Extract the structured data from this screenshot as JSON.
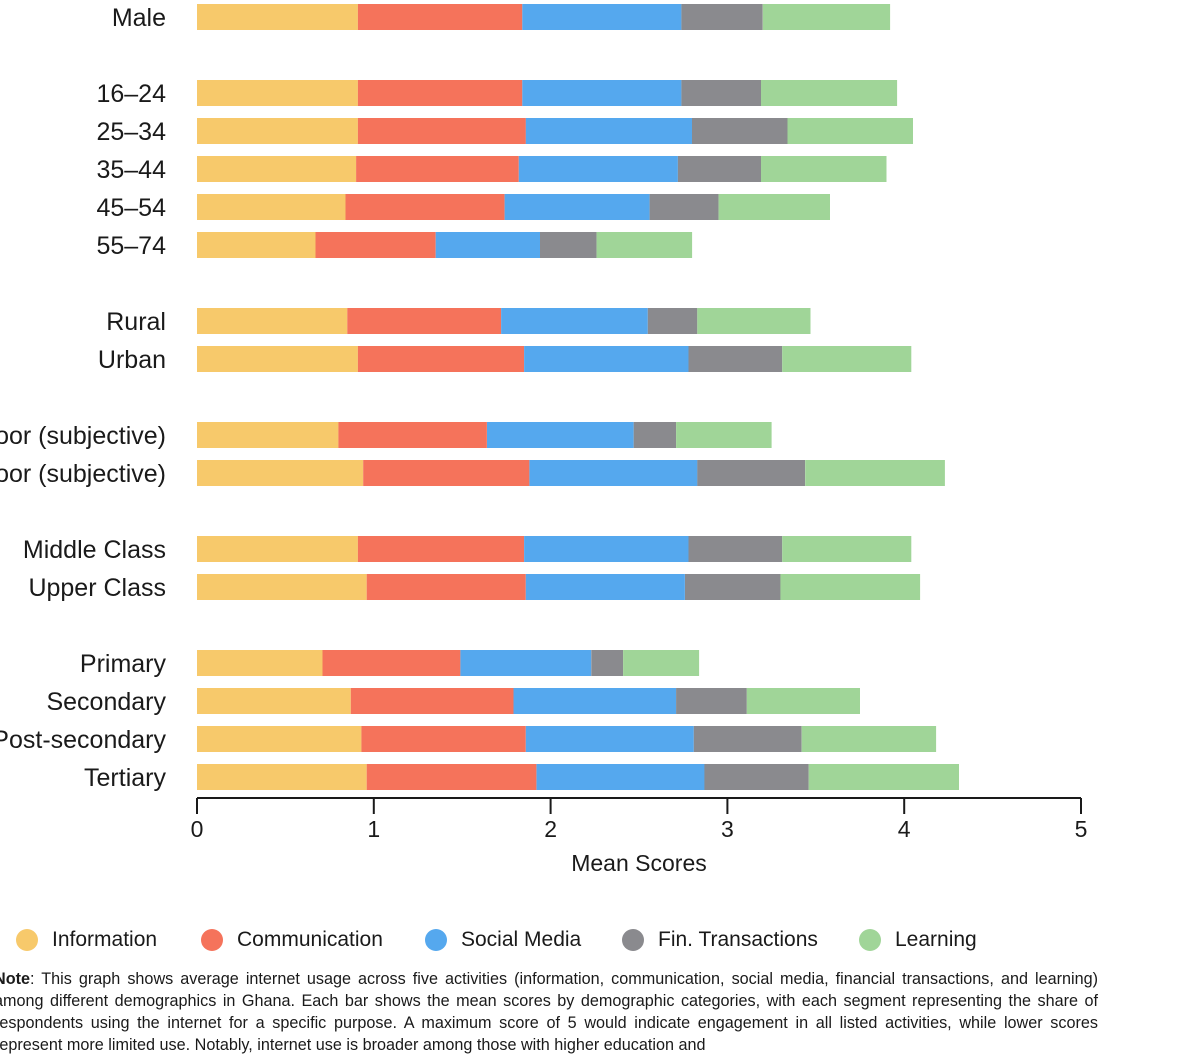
{
  "chart_data": {
    "type": "bar",
    "orientation": "horizontal",
    "stacked": true,
    "xlabel": "Mean Scores",
    "xlim": [
      0,
      5
    ],
    "xticks": [
      0,
      1,
      2,
      3,
      4,
      5
    ],
    "grid": false,
    "legend_position": "bottom",
    "categories": [
      "Male",
      "16–24",
      "25–34",
      "35–44",
      "45–54",
      "55–74",
      "Rural",
      "Urban",
      "Poor (subjective)",
      "Not poor (subjective)",
      "Middle Class",
      "Upper Class",
      "Primary",
      "Secondary",
      "Post-secondary",
      "Tertiary"
    ],
    "series": [
      {
        "name": "Information",
        "color": "#F7C96B",
        "values": [
          0.91,
          0.91,
          0.91,
          0.9,
          0.84,
          0.67,
          0.85,
          0.91,
          0.8,
          0.94,
          0.91,
          0.96,
          0.71,
          0.87,
          0.93,
          0.96
        ]
      },
      {
        "name": "Communication",
        "color": "#F5735B",
        "values": [
          0.93,
          0.93,
          0.95,
          0.92,
          0.9,
          0.68,
          0.87,
          0.94,
          0.84,
          0.94,
          0.94,
          0.9,
          0.78,
          0.92,
          0.93,
          0.96
        ]
      },
      {
        "name": "Social Media",
        "color": "#55A8EE",
        "values": [
          0.9,
          0.9,
          0.94,
          0.9,
          0.82,
          0.59,
          0.83,
          0.93,
          0.83,
          0.95,
          0.93,
          0.9,
          0.74,
          0.92,
          0.95,
          0.95
        ]
      },
      {
        "name": "Fin. Transactions",
        "color": "#8A8A8E",
        "values": [
          0.46,
          0.45,
          0.54,
          0.47,
          0.39,
          0.32,
          0.28,
          0.53,
          0.24,
          0.61,
          0.53,
          0.54,
          0.18,
          0.4,
          0.61,
          0.59
        ]
      },
      {
        "name": "Learning",
        "color": "#A0D598",
        "values": [
          0.72,
          0.77,
          0.71,
          0.71,
          0.63,
          0.54,
          0.64,
          0.73,
          0.54,
          0.79,
          0.73,
          0.79,
          0.43,
          0.64,
          0.76,
          0.85
        ]
      }
    ]
  },
  "note": {
    "lead": "Note",
    "text": ": This graph shows average internet usage across five activities (information, communication, social media, financial transactions, and learning) among different demographics in Ghana. Each bar shows the mean scores by demographic categories, with each segment representing the share of respondents using the internet for a specific purpose. A maximum score of 5 would indicate engagement in all listed activities, while lower scores represent more limited use. Notably, internet use is broader among those with higher education and"
  }
}
